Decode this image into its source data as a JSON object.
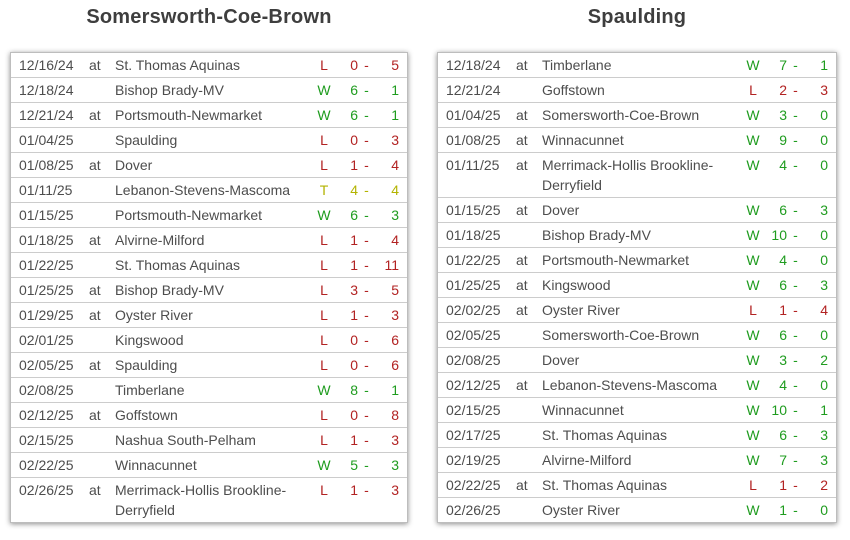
{
  "score_separator": "-",
  "colors": {
    "result": {
      "W": "#1f9c1f",
      "L": "#b22222",
      "T": "#b3b300"
    },
    "text": "#4d4d4d",
    "title": "#3e3e3e",
    "table_border": "#bdbdbd",
    "row_divider": "#cccccc"
  },
  "tables": [
    {
      "title": "Somersworth-Coe-Brown",
      "rows": [
        {
          "date": "12/16/24",
          "at": "at",
          "opponent": "St. Thomas Aquinas",
          "result": "L",
          "score1": "0",
          "score2": "5"
        },
        {
          "date": "12/18/24",
          "at": "",
          "opponent": "Bishop Brady-MV",
          "result": "W",
          "score1": "6",
          "score2": "1"
        },
        {
          "date": "12/21/24",
          "at": "at",
          "opponent": "Portsmouth-Newmarket",
          "result": "W",
          "score1": "6",
          "score2": "1"
        },
        {
          "date": "01/04/25",
          "at": "",
          "opponent": "Spaulding",
          "result": "L",
          "score1": "0",
          "score2": "3"
        },
        {
          "date": "01/08/25",
          "at": "at",
          "opponent": "Dover",
          "result": "L",
          "score1": "1",
          "score2": "4"
        },
        {
          "date": "01/11/25",
          "at": "",
          "opponent": "Lebanon-Stevens-Mascoma",
          "result": "T",
          "score1": "4",
          "score2": "4"
        },
        {
          "date": "01/15/25",
          "at": "",
          "opponent": "Portsmouth-Newmarket",
          "result": "W",
          "score1": "6",
          "score2": "3"
        },
        {
          "date": "01/18/25",
          "at": "at",
          "opponent": "Alvirne-Milford",
          "result": "L",
          "score1": "1",
          "score2": "4"
        },
        {
          "date": "01/22/25",
          "at": "",
          "opponent": "St. Thomas Aquinas",
          "result": "L",
          "score1": "1",
          "score2": "11"
        },
        {
          "date": "01/25/25",
          "at": "at",
          "opponent": "Bishop Brady-MV",
          "result": "L",
          "score1": "3",
          "score2": "5"
        },
        {
          "date": "01/29/25",
          "at": "at",
          "opponent": "Oyster River",
          "result": "L",
          "score1": "1",
          "score2": "3"
        },
        {
          "date": "02/01/25",
          "at": "",
          "opponent": "Kingswood",
          "result": "L",
          "score1": "0",
          "score2": "6"
        },
        {
          "date": "02/05/25",
          "at": "at",
          "opponent": "Spaulding",
          "result": "L",
          "score1": "0",
          "score2": "6"
        },
        {
          "date": "02/08/25",
          "at": "",
          "opponent": "Timberlane",
          "result": "W",
          "score1": "8",
          "score2": "1"
        },
        {
          "date": "02/12/25",
          "at": "at",
          "opponent": "Goffstown",
          "result": "L",
          "score1": "0",
          "score2": "8"
        },
        {
          "date": "02/15/25",
          "at": "",
          "opponent": "Nashua South-Pelham",
          "result": "L",
          "score1": "1",
          "score2": "3"
        },
        {
          "date": "02/22/25",
          "at": "",
          "opponent": "Winnacunnet",
          "result": "W",
          "score1": "5",
          "score2": "3"
        },
        {
          "date": "02/26/25",
          "at": "at",
          "opponent": "Merrimack-Hollis Brookline-Derryfield",
          "result": "L",
          "score1": "1",
          "score2": "3"
        }
      ]
    },
    {
      "title": "Spaulding",
      "rows": [
        {
          "date": "12/18/24",
          "at": "at",
          "opponent": "Timberlane",
          "result": "W",
          "score1": "7",
          "score2": "1"
        },
        {
          "date": "12/21/24",
          "at": "",
          "opponent": "Goffstown",
          "result": "L",
          "score1": "2",
          "score2": "3"
        },
        {
          "date": "01/04/25",
          "at": "at",
          "opponent": "Somersworth-Coe-Brown",
          "result": "W",
          "score1": "3",
          "score2": "0"
        },
        {
          "date": "01/08/25",
          "at": "at",
          "opponent": "Winnacunnet",
          "result": "W",
          "score1": "9",
          "score2": "0"
        },
        {
          "date": "01/11/25",
          "at": "at",
          "opponent": "Merrimack-Hollis Brookline-Derryfield",
          "result": "W",
          "score1": "4",
          "score2": "0"
        },
        {
          "date": "01/15/25",
          "at": "at",
          "opponent": "Dover",
          "result": "W",
          "score1": "6",
          "score2": "3"
        },
        {
          "date": "01/18/25",
          "at": "",
          "opponent": "Bishop Brady-MV",
          "result": "W",
          "score1": "10",
          "score2": "0"
        },
        {
          "date": "01/22/25",
          "at": "at",
          "opponent": "Portsmouth-Newmarket",
          "result": "W",
          "score1": "4",
          "score2": "0"
        },
        {
          "date": "01/25/25",
          "at": "at",
          "opponent": "Kingswood",
          "result": "W",
          "score1": "6",
          "score2": "3"
        },
        {
          "date": "02/02/25",
          "at": "at",
          "opponent": "Oyster River",
          "result": "L",
          "score1": "1",
          "score2": "4"
        },
        {
          "date": "02/05/25",
          "at": "",
          "opponent": "Somersworth-Coe-Brown",
          "result": "W",
          "score1": "6",
          "score2": "0"
        },
        {
          "date": "02/08/25",
          "at": "",
          "opponent": "Dover",
          "result": "W",
          "score1": "3",
          "score2": "2"
        },
        {
          "date": "02/12/25",
          "at": "at",
          "opponent": "Lebanon-Stevens-Mascoma",
          "result": "W",
          "score1": "4",
          "score2": "0"
        },
        {
          "date": "02/15/25",
          "at": "",
          "opponent": "Winnacunnet",
          "result": "W",
          "score1": "10",
          "score2": "1"
        },
        {
          "date": "02/17/25",
          "at": "",
          "opponent": "St. Thomas Aquinas",
          "result": "W",
          "score1": "6",
          "score2": "3"
        },
        {
          "date": "02/19/25",
          "at": "",
          "opponent": "Alvirne-Milford",
          "result": "W",
          "score1": "7",
          "score2": "3"
        },
        {
          "date": "02/22/25",
          "at": "at",
          "opponent": "St. Thomas Aquinas",
          "result": "L",
          "score1": "1",
          "score2": "2"
        },
        {
          "date": "02/26/25",
          "at": "",
          "opponent": "Oyster River",
          "result": "W",
          "score1": "1",
          "score2": "0"
        }
      ]
    }
  ]
}
